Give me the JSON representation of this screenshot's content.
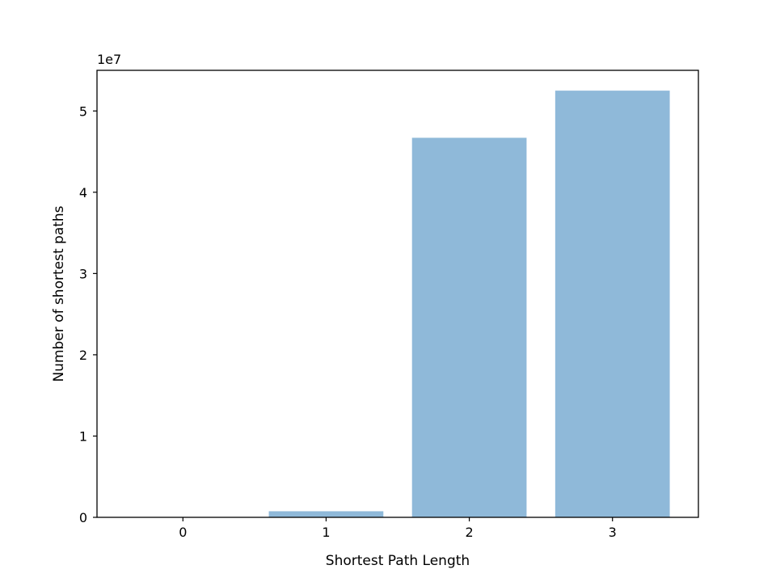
{
  "chart_data": {
    "type": "bar",
    "categories": [
      "0",
      "1",
      "2",
      "3"
    ],
    "values": [
      0,
      750000,
      46700000,
      52500000
    ],
    "xlabel": "Shortest Path Length",
    "ylabel": "Number of shortest paths",
    "y_offset_label": "1e7",
    "y_scale": 10000000,
    "ylim": [
      0,
      55000000
    ],
    "y_ticks": [
      0,
      10000000,
      20000000,
      30000000,
      40000000,
      50000000
    ],
    "y_tick_labels": [
      "0",
      "1",
      "2",
      "3",
      "4",
      "5"
    ],
    "bar_color": "#8fb9d9",
    "grid": false,
    "legend": "none"
  }
}
